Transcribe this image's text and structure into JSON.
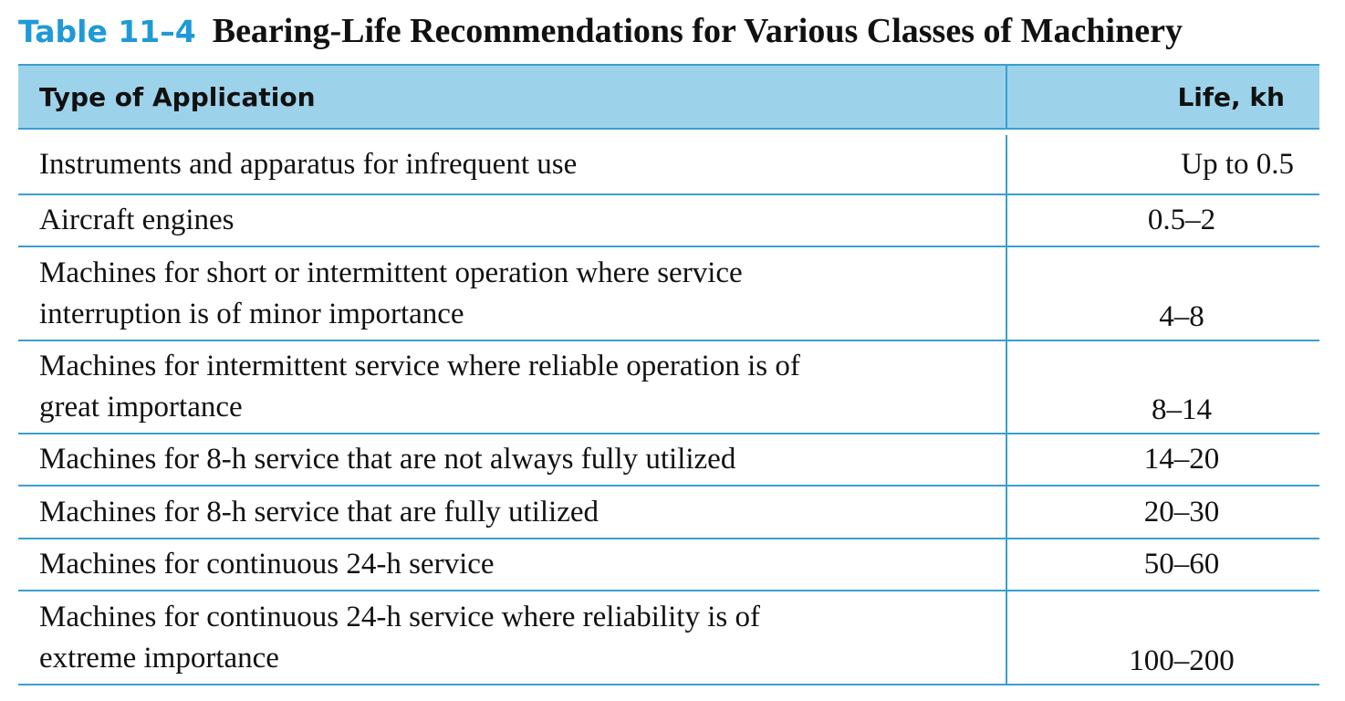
{
  "caption": {
    "label": "Table 11–4",
    "title": "Bearing-Life Recommendations for Various Classes of Machinery",
    "label_color": "#1f9ad6"
  },
  "header": {
    "col_application": "Type of Application",
    "col_life": "Life, kh",
    "background": "#9dd3ea"
  },
  "rows": [
    {
      "application": "Instruments and apparatus for infrequent use",
      "life": "Up to 0.5"
    },
    {
      "application": "Aircraft engines",
      "life": "0.5–2"
    },
    {
      "application": "Machines for short or intermittent operation where service interruption is of minor importance",
      "life": "4–8"
    },
    {
      "application": "Machines for intermittent service where reliable operation is of great importance",
      "life": "8–14"
    },
    {
      "application": "Machines for 8-h service that are not always fully utilized",
      "life": "14–20"
    },
    {
      "application": "Machines for 8-h service that are fully utilized",
      "life": "20–30"
    },
    {
      "application": "Machines for continuous 24-h service",
      "life": "50–60"
    },
    {
      "application": "Machines for continuous 24-h service where reliability is of extreme importance",
      "life": "100–200"
    }
  ],
  "rule_color": "#3a9fd0"
}
